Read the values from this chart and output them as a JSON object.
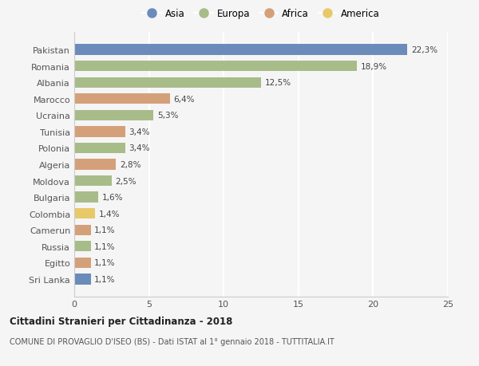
{
  "countries": [
    "Pakistan",
    "Romania",
    "Albania",
    "Marocco",
    "Ucraina",
    "Tunisia",
    "Polonia",
    "Algeria",
    "Moldova",
    "Bulgaria",
    "Colombia",
    "Camerun",
    "Russia",
    "Egitto",
    "Sri Lanka"
  ],
  "values": [
    22.3,
    18.9,
    12.5,
    6.4,
    5.3,
    3.4,
    3.4,
    2.8,
    2.5,
    1.6,
    1.4,
    1.1,
    1.1,
    1.1,
    1.1
  ],
  "labels": [
    "22,3%",
    "18,9%",
    "12,5%",
    "6,4%",
    "5,3%",
    "3,4%",
    "3,4%",
    "2,8%",
    "2,5%",
    "1,6%",
    "1,4%",
    "1,1%",
    "1,1%",
    "1,1%",
    "1,1%"
  ],
  "continents": [
    "Asia",
    "Europa",
    "Europa",
    "Africa",
    "Europa",
    "Africa",
    "Europa",
    "Africa",
    "Europa",
    "Europa",
    "America",
    "Africa",
    "Europa",
    "Africa",
    "Asia"
  ],
  "colors": {
    "Asia": "#6b8cba",
    "Europa": "#a8bc8a",
    "Africa": "#d4a07a",
    "America": "#e8c96a"
  },
  "legend_order": [
    "Asia",
    "Europa",
    "Africa",
    "America"
  ],
  "bg_color": "#f5f5f5",
  "grid_color": "#ffffff",
  "title1": "Cittadini Stranieri per Cittadinanza - 2018",
  "title2": "COMUNE DI PROVAGLIO D'ISEO (BS) - Dati ISTAT al 1° gennaio 2018 - TUTTITALIA.IT",
  "xlim": [
    0,
    25
  ],
  "xticks": [
    0,
    5,
    10,
    15,
    20,
    25
  ]
}
